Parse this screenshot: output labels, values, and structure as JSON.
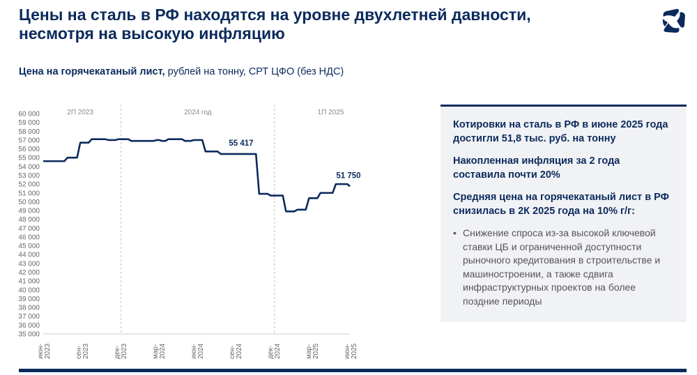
{
  "header": {
    "title_line1": "Цены на сталь в РФ находятся на уровне двухлетней давности,",
    "title_line2": "несмотря на высокую инфляцию",
    "subtitle_bold": "Цена на горячекатаный лист,",
    "subtitle_rest": " рублей на тонну, СРТ ЦФО (без НДС)"
  },
  "colors": {
    "brand": "#0b2a5c",
    "panel_bg": "#f1f2f5"
  },
  "chart_data": {
    "type": "line",
    "title": "Цена на горячекатаный лист, рублей на тонну, СРТ ЦФО (без НДС)",
    "ylim": [
      35000,
      60000
    ],
    "y_ticks": [
      "35 000",
      "36 000",
      "37 000",
      "38 000",
      "39 000",
      "40 000",
      "41 000",
      "42 000",
      "43 000",
      "44 000",
      "45 000",
      "46 000",
      "47 000",
      "48 000",
      "49 000",
      "50 000",
      "51 000",
      "52 000",
      "53 000",
      "54 000",
      "55 000",
      "56 000",
      "57 000",
      "58 000",
      "59 000",
      "60 000"
    ],
    "x_ticks": [
      {
        "month": 0,
        "l1": "июн-",
        "l2": "2023"
      },
      {
        "month": 3,
        "l1": "сен-",
        "l2": "2023"
      },
      {
        "month": 6,
        "l1": "дек-",
        "l2": "2023"
      },
      {
        "month": 9,
        "l1": "мар-",
        "l2": "2024"
      },
      {
        "month": 12,
        "l1": "июн-",
        "l2": "2024"
      },
      {
        "month": 15,
        "l1": "сен-",
        "l2": "2024"
      },
      {
        "month": 18,
        "l1": "дек-",
        "l2": "2024"
      },
      {
        "month": 21,
        "l1": "мар-",
        "l2": "2025"
      },
      {
        "month": 24,
        "l1": "июн-",
        "l2": "2025"
      }
    ],
    "periods": [
      {
        "label": "2П 2023",
        "from": 0,
        "to": 6.1
      },
      {
        "label": "2024 год",
        "from": 6.1,
        "to": 18.1
      },
      {
        "label": "1П 2025",
        "from": 18.1,
        "to": 24
      }
    ],
    "dividers": [
      6.1,
      18.1
    ],
    "series": [
      {
        "name": "Цена на горячекатаный лист",
        "steps": [
          [
            0,
            54600
          ],
          [
            1.9,
            55000
          ],
          [
            2.9,
            56700
          ],
          [
            3.8,
            57100
          ],
          [
            5.1,
            57000
          ],
          [
            5.9,
            57100
          ],
          [
            6.9,
            56900
          ],
          [
            8.9,
            57000
          ],
          [
            9.3,
            56900
          ],
          [
            9.8,
            57100
          ],
          [
            11.1,
            56900
          ],
          [
            11.8,
            57000
          ],
          [
            12.7,
            55700
          ],
          [
            13.9,
            55417
          ],
          [
            16.9,
            50900
          ],
          [
            17.8,
            50700
          ],
          [
            19.0,
            48900
          ],
          [
            19.9,
            49100
          ],
          [
            20.8,
            50400
          ],
          [
            21.7,
            51000
          ],
          [
            22.9,
            52000
          ],
          [
            23.8,
            51750
          ]
        ],
        "end_month": 24
      }
    ],
    "annotations": [
      {
        "text": "55 417",
        "month": 15.6,
        "value": 55417
      },
      {
        "text": "51 750",
        "month": 24,
        "value": 51750
      }
    ]
  },
  "panel": {
    "h1": "Котировки на сталь в РФ в июне 2025 года достигли 51,8 тыс. руб. на тонну",
    "h2": "Накопленная инфляция за 2 года составила почти 20%",
    "h3": "Средняя цена на горячекатаный лист в РФ снизилась в 2К 2025 года на 10% г/г:",
    "bullets": [
      "Снижение спроса из-за высокой ключевой ставки ЦБ и ограниченной доступности рыночного кредитования в строительстве и машиностроении, а также сдвига инфраструктурных проектов на более поздние периоды"
    ]
  }
}
